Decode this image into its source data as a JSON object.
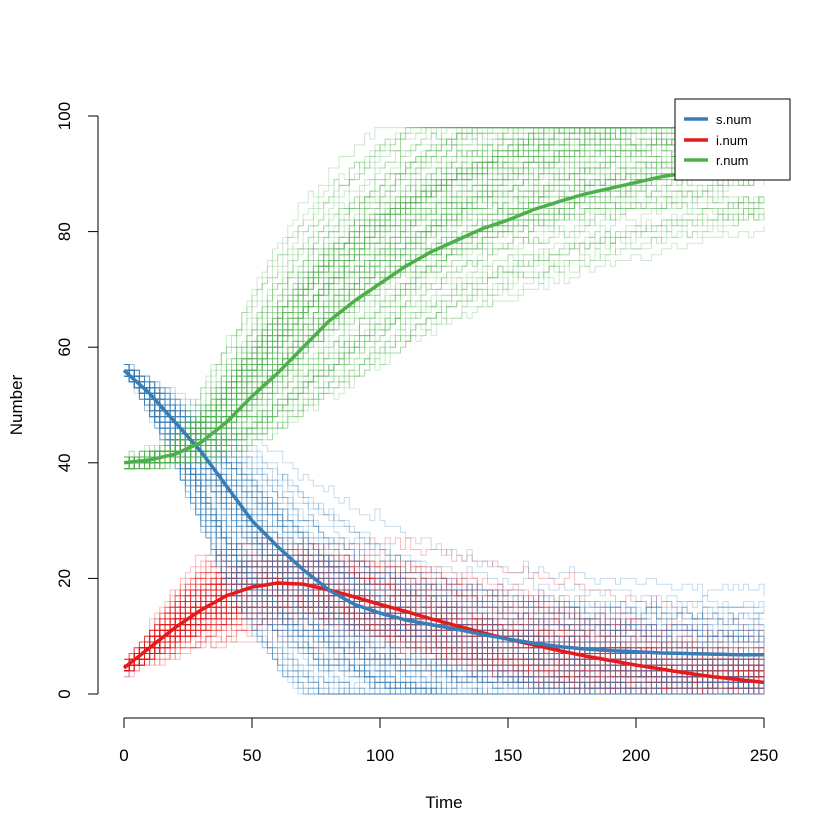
{
  "chart_data": {
    "type": "line",
    "title": "",
    "xlabel": "Time",
    "ylabel": "Number",
    "xlim": [
      0,
      250
    ],
    "ylim": [
      0,
      100
    ],
    "xticks": [
      0,
      50,
      100,
      150,
      200,
      250
    ],
    "yticks": [
      0,
      20,
      40,
      60,
      80,
      100
    ],
    "legend_position": "top-right",
    "simulation_runs": 100,
    "series": [
      {
        "name": "s.num",
        "color": "#377EB8",
        "x": [
          0,
          10,
          20,
          30,
          40,
          50,
          60,
          70,
          80,
          90,
          100,
          110,
          120,
          130,
          140,
          150,
          160,
          170,
          180,
          190,
          200,
          210,
          220,
          230,
          240,
          250
        ],
        "values": [
          56,
          52,
          47,
          42,
          36,
          30,
          25.5,
          21.5,
          18,
          15.5,
          14,
          12.8,
          12,
          11.2,
          10.3,
          9.5,
          8.8,
          8.2,
          7.8,
          7.5,
          7.3,
          7.1,
          7.0,
          6.9,
          6.8,
          6.8
        ]
      },
      {
        "name": "i.num",
        "color": "#E41A1C",
        "x": [
          0,
          10,
          20,
          30,
          40,
          50,
          60,
          70,
          80,
          90,
          100,
          110,
          120,
          130,
          140,
          150,
          160,
          170,
          180,
          190,
          200,
          210,
          220,
          230,
          240,
          250
        ],
        "values": [
          4.5,
          8,
          11.5,
          14.5,
          17,
          18.5,
          19.2,
          19.0,
          18.0,
          16.8,
          15.5,
          14.3,
          13.0,
          11.8,
          10.6,
          9.5,
          8.5,
          7.5,
          6.6,
          5.8,
          5.0,
          4.3,
          3.6,
          3.0,
          2.5,
          2.0
        ]
      },
      {
        "name": "r.num",
        "color": "#4DAF4A",
        "x": [
          0,
          10,
          20,
          30,
          40,
          50,
          60,
          70,
          80,
          90,
          100,
          110,
          120,
          130,
          140,
          150,
          160,
          170,
          180,
          190,
          200,
          210,
          220,
          230,
          240,
          250
        ],
        "values": [
          40,
          40.5,
          41.5,
          43.5,
          47,
          51.5,
          55.5,
          60,
          64.5,
          68,
          71,
          74,
          76.5,
          78.5,
          80.5,
          82,
          83.8,
          85.2,
          86.5,
          87.5,
          88.5,
          89.5,
          90.2,
          90.8,
          91.4,
          91.8
        ]
      }
    ]
  }
}
